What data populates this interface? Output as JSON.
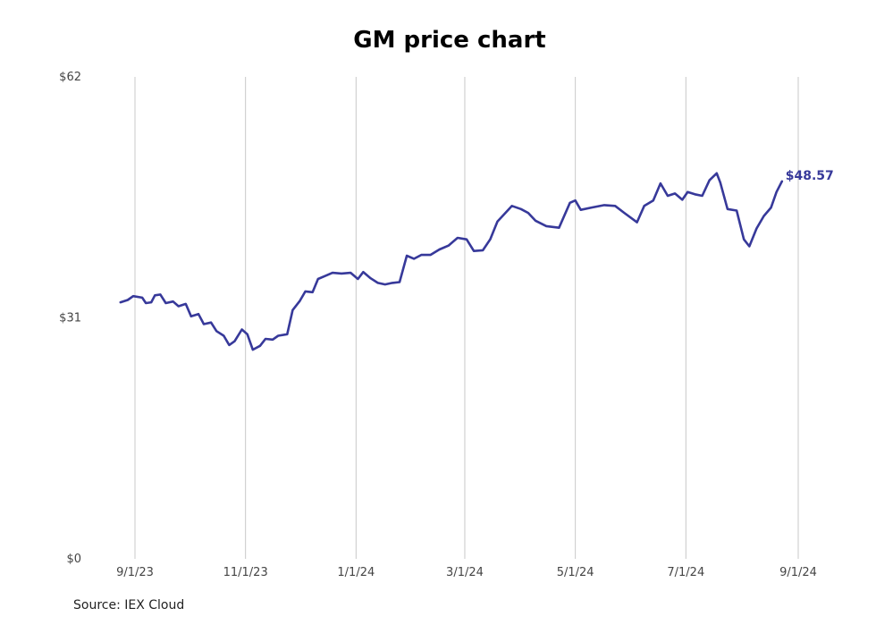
{
  "chart_data": {
    "type": "line",
    "title": "GM price chart",
    "xlabel": "",
    "ylabel": "",
    "y_ticks": [
      "$0",
      "$31",
      "$62"
    ],
    "ylim": [
      0,
      62
    ],
    "x_ticks": [
      {
        "label": "9/1/23",
        "date": "2023-09-01"
      },
      {
        "label": "11/1/23",
        "date": "2023-11-01"
      },
      {
        "label": "1/1/24",
        "date": "2024-01-01"
      },
      {
        "label": "3/1/24",
        "date": "2024-03-01"
      },
      {
        "label": "5/1/24",
        "date": "2024-05-01"
      },
      {
        "label": "7/1/24",
        "date": "2024-07-01"
      },
      {
        "label": "9/1/24",
        "date": "2024-09-01"
      }
    ],
    "grid": {
      "vertical": true,
      "horizontal": false
    },
    "line_color": "#37399a",
    "last_value_label": "$48.57",
    "series": [
      {
        "points": [
          [
            "2023-08-24",
            33.0
          ],
          [
            "2023-08-28",
            33.3
          ],
          [
            "2023-08-31",
            33.8
          ],
          [
            "2023-09-05",
            33.6
          ],
          [
            "2023-09-07",
            32.9
          ],
          [
            "2023-09-10",
            33.0
          ],
          [
            "2023-09-12",
            33.9
          ],
          [
            "2023-09-15",
            34.0
          ],
          [
            "2023-09-18",
            32.9
          ],
          [
            "2023-09-22",
            33.1
          ],
          [
            "2023-09-25",
            32.5
          ],
          [
            "2023-09-29",
            32.8
          ],
          [
            "2023-10-02",
            31.2
          ],
          [
            "2023-10-06",
            31.5
          ],
          [
            "2023-10-09",
            30.2
          ],
          [
            "2023-10-13",
            30.4
          ],
          [
            "2023-10-16",
            29.3
          ],
          [
            "2023-10-20",
            28.7
          ],
          [
            "2023-10-23",
            27.5
          ],
          [
            "2023-10-26",
            28.0
          ],
          [
            "2023-10-30",
            29.5
          ],
          [
            "2023-11-02",
            28.9
          ],
          [
            "2023-11-05",
            26.9
          ],
          [
            "2023-11-09",
            27.4
          ],
          [
            "2023-11-12",
            28.3
          ],
          [
            "2023-11-16",
            28.2
          ],
          [
            "2023-11-19",
            28.7
          ],
          [
            "2023-11-24",
            28.9
          ],
          [
            "2023-11-27",
            32.0
          ],
          [
            "2023-12-01",
            33.2
          ],
          [
            "2023-12-04",
            34.4
          ],
          [
            "2023-12-08",
            34.3
          ],
          [
            "2023-12-11",
            36.0
          ],
          [
            "2023-12-15",
            36.4
          ],
          [
            "2023-12-19",
            36.8
          ],
          [
            "2023-12-24",
            36.7
          ],
          [
            "2023-12-29",
            36.8
          ],
          [
            "2024-01-02",
            36.0
          ],
          [
            "2024-01-05",
            36.9
          ],
          [
            "2024-01-09",
            36.1
          ],
          [
            "2024-01-13",
            35.5
          ],
          [
            "2024-01-17",
            35.3
          ],
          [
            "2024-01-21",
            35.5
          ],
          [
            "2024-01-25",
            35.6
          ],
          [
            "2024-01-29",
            39.0
          ],
          [
            "2024-02-02",
            38.6
          ],
          [
            "2024-02-06",
            39.1
          ],
          [
            "2024-02-11",
            39.1
          ],
          [
            "2024-02-16",
            39.8
          ],
          [
            "2024-02-21",
            40.3
          ],
          [
            "2024-02-26",
            41.3
          ],
          [
            "2024-03-02",
            41.1
          ],
          [
            "2024-03-06",
            39.6
          ],
          [
            "2024-03-11",
            39.7
          ],
          [
            "2024-03-15",
            41.1
          ],
          [
            "2024-03-19",
            43.4
          ],
          [
            "2024-03-23",
            44.4
          ],
          [
            "2024-03-27",
            45.4
          ],
          [
            "2024-04-01",
            45.0
          ],
          [
            "2024-04-05",
            44.5
          ],
          [
            "2024-04-09",
            43.5
          ],
          [
            "2024-04-15",
            42.8
          ],
          [
            "2024-04-22",
            42.6
          ],
          [
            "2024-04-28",
            45.8
          ],
          [
            "2024-05-01",
            46.1
          ],
          [
            "2024-05-04",
            44.9
          ],
          [
            "2024-05-10",
            45.2
          ],
          [
            "2024-05-17",
            45.5
          ],
          [
            "2024-05-23",
            45.4
          ],
          [
            "2024-05-28",
            44.5
          ],
          [
            "2024-06-04",
            43.3
          ],
          [
            "2024-06-08",
            45.4
          ],
          [
            "2024-06-13",
            46.1
          ],
          [
            "2024-06-17",
            48.3
          ],
          [
            "2024-06-21",
            46.7
          ],
          [
            "2024-06-25",
            47.0
          ],
          [
            "2024-06-29",
            46.2
          ],
          [
            "2024-07-02",
            47.2
          ],
          [
            "2024-07-06",
            46.9
          ],
          [
            "2024-07-10",
            46.7
          ],
          [
            "2024-07-14",
            48.7
          ],
          [
            "2024-07-18",
            49.6
          ],
          [
            "2024-07-20",
            48.4
          ],
          [
            "2024-07-24",
            45.0
          ],
          [
            "2024-07-29",
            44.8
          ],
          [
            "2024-08-02",
            41.1
          ],
          [
            "2024-08-05",
            40.2
          ],
          [
            "2024-08-09",
            42.5
          ],
          [
            "2024-08-13",
            44.1
          ],
          [
            "2024-08-17",
            45.2
          ],
          [
            "2024-08-20",
            47.2
          ],
          [
            "2024-08-23",
            48.57
          ]
        ]
      }
    ]
  },
  "source": "Source: IEX Cloud"
}
